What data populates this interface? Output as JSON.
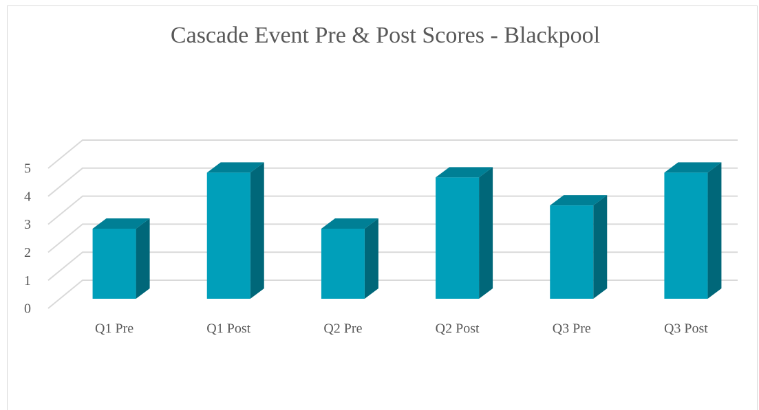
{
  "chart_data": {
    "type": "bar3d",
    "title": "Cascade Event Pre & Post Scores - Blackpool",
    "categories": [
      "Q1 Pre",
      "Q1 Post",
      "Q2 Pre",
      "Q2 Post",
      "Q3 Pre",
      "Q3 Post"
    ],
    "values": [
      2.5,
      4.5,
      2.5,
      4.33,
      3.33,
      4.5
    ],
    "color": "#009fba",
    "ylim": [
      0,
      5
    ],
    "yticks": [
      0,
      1,
      2,
      3,
      4,
      5
    ],
    "grid": true
  }
}
